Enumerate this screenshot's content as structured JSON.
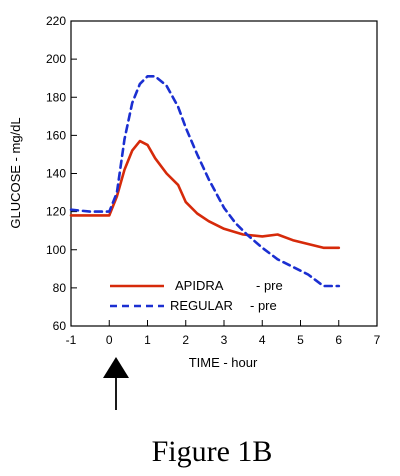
{
  "chart_data": {
    "type": "line",
    "xlabel": "TIME - hour",
    "ylabel": "GLUCOSE - mg/dL",
    "xlim": [
      -1,
      7
    ],
    "ylim": [
      60,
      220
    ],
    "xticks": [
      "-1",
      "0",
      "1",
      "2",
      "3",
      "4",
      "5",
      "6",
      "7"
    ],
    "yticks": [
      "60",
      "80",
      "100",
      "120",
      "140",
      "160",
      "180",
      "200",
      "220"
    ],
    "grid": false,
    "legend_position": "bottom-left",
    "series": [
      {
        "name": "APIDRA",
        "name_suffix": "- pre",
        "color": "#d62a0a",
        "line_style": "solid",
        "x": [
          -1,
          -0.5,
          0,
          0.2,
          0.4,
          0.6,
          0.8,
          1.0,
          1.2,
          1.5,
          1.8,
          2.0,
          2.3,
          2.6,
          3.0,
          3.5,
          4.0,
          4.4,
          4.8,
          5.2,
          5.6,
          6.0
        ],
        "y": [
          118,
          118,
          118,
          128,
          142,
          152,
          157,
          155,
          148,
          140,
          134,
          125,
          119,
          115,
          111,
          108,
          107,
          108,
          105,
          103,
          101,
          101
        ]
      },
      {
        "name": "REGULAR",
        "name_suffix": "- pre",
        "color": "#1b2fd1",
        "line_style": "dashed",
        "x": [
          -1,
          -0.5,
          0,
          0.2,
          0.4,
          0.6,
          0.8,
          1.0,
          1.2,
          1.5,
          1.8,
          2.0,
          2.3,
          2.6,
          3.0,
          3.3,
          3.6,
          4.0,
          4.4,
          4.8,
          5.2,
          5.6,
          6.0
        ],
        "y": [
          121,
          120,
          120,
          130,
          158,
          177,
          187,
          191,
          191,
          186,
          175,
          164,
          150,
          137,
          122,
          114,
          108,
          101,
          95,
          91,
          87,
          81,
          81
        ]
      }
    ]
  },
  "dose_arrow_icon": "up-arrow-icon",
  "caption": "Figure 1B"
}
